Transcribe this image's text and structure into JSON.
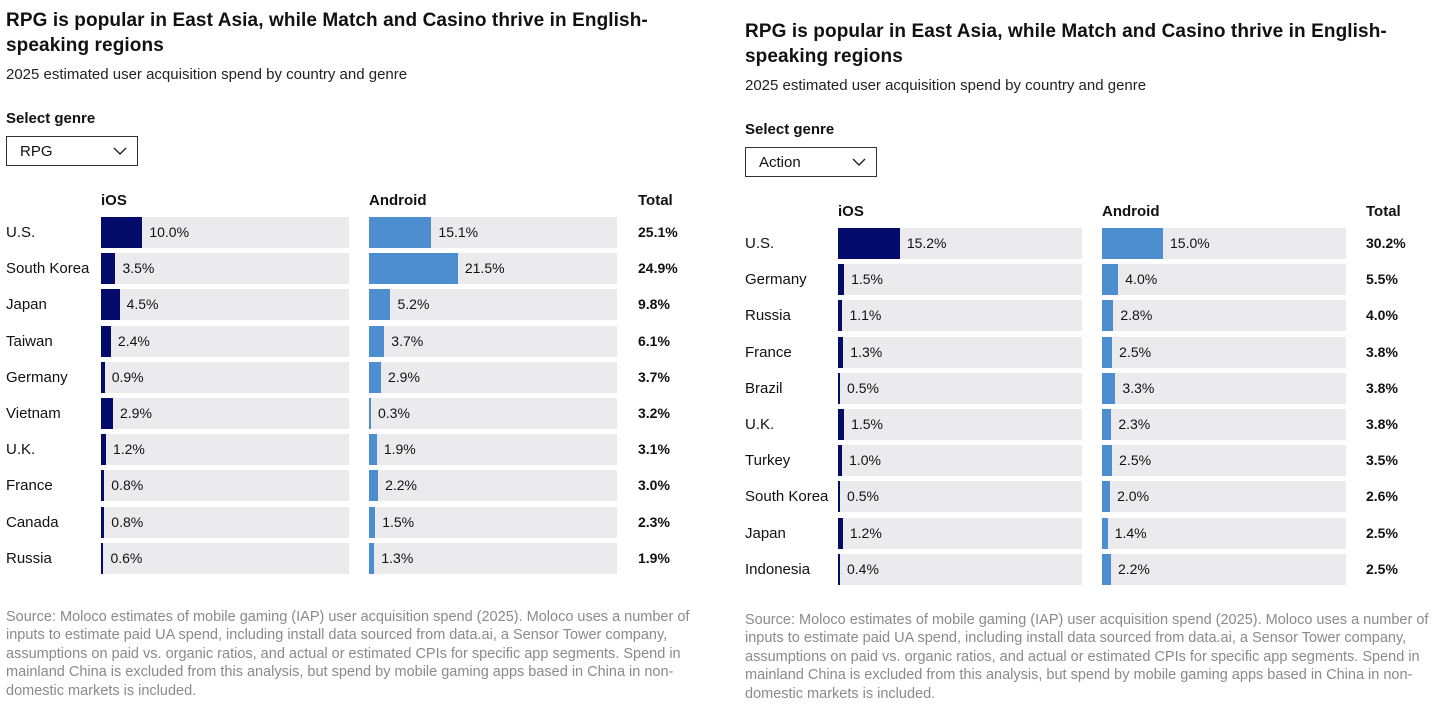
{
  "panels": [
    {
      "title": "RPG is popular in East Asia, while Match and Casino thrive in English-speaking regions",
      "subtitle": "2025 estimated user acquisition spend by country and genre",
      "select_label": "Select genre",
      "select_value": "RPG",
      "headers": {
        "ios": "iOS",
        "android": "Android",
        "total": "Total"
      },
      "source": "Source: Moloco estimates of mobile gaming (IAP) user acquisition spend (2025). Moloco uses a number of inputs to estimate paid UA spend, including install data sourced from data.ai, a Sensor Tower company, assumptions on paid vs. organic ratios, and actual or estimated CPIs for specific app segments. Spend in mainland China is excluded from this analysis, but spend by mobile gaming apps based in China in non-domestic markets is included."
    },
    {
      "title": "RPG is popular in East Asia, while Match and Casino thrive in English-speaking regions",
      "subtitle": "2025 estimated user acquisition spend by country and genre",
      "select_label": "Select genre",
      "select_value": "Action",
      "headers": {
        "ios": "iOS",
        "android": "Android",
        "total": "Total"
      },
      "source": "Source: Moloco estimates of mobile gaming (IAP) user acquisition spend (2025). Moloco uses a number of inputs to estimate paid UA spend, including install data sourced from data.ai, a Sensor Tower company, assumptions on paid vs. organic ratios, and actual or estimated CPIs for specific app segments. Spend in mainland China is excluded from this analysis, but spend by mobile gaming apps based in China in non-domestic markets is included."
    }
  ],
  "chart_data": [
    {
      "type": "bar",
      "genre": "RPG",
      "title": "RPG is popular in East Asia, while Match and Casino thrive in English-speaking regions",
      "subtitle": "2025 estimated user acquisition spend by country and genre",
      "categories": [
        "U.S.",
        "South Korea",
        "Japan",
        "Taiwan",
        "Germany",
        "Vietnam",
        "U.K.",
        "France",
        "Canada",
        "Russia"
      ],
      "series": [
        {
          "name": "iOS",
          "values": [
            10.0,
            3.5,
            4.5,
            2.4,
            0.9,
            2.9,
            1.2,
            0.8,
            0.8,
            0.6
          ],
          "color": "#040c6b"
        },
        {
          "name": "Android",
          "values": [
            15.1,
            21.5,
            5.2,
            3.7,
            2.9,
            0.3,
            1.9,
            2.2,
            1.5,
            1.3
          ],
          "color": "#4d8ed0"
        }
      ],
      "labels_ios": [
        "10.0%",
        "3.5%",
        "4.5%",
        "2.4%",
        "0.9%",
        "2.9%",
        "1.2%",
        "0.8%",
        "0.8%",
        "0.6%"
      ],
      "labels_android": [
        "15.1%",
        "21.5%",
        "5.2%",
        "3.7%",
        "2.9%",
        "0.3%",
        "1.9%",
        "2.2%",
        "1.5%",
        "1.3%"
      ],
      "totals": [
        "25.1%",
        "24.9%",
        "9.8%",
        "6.1%",
        "3.7%",
        "3.2%",
        "3.1%",
        "3.0%",
        "2.3%",
        "1.9%"
      ],
      "xlim": [
        0,
        60
      ]
    },
    {
      "type": "bar",
      "genre": "Action",
      "title": "RPG is popular in East Asia, while Match and Casino thrive in English-speaking regions",
      "subtitle": "2025 estimated user acquisition spend by country and genre",
      "categories": [
        "U.S.",
        "Germany",
        "Russia",
        "France",
        "Brazil",
        "U.K.",
        "Turkey",
        "South Korea",
        "Japan",
        "Indonesia"
      ],
      "series": [
        {
          "name": "iOS",
          "values": [
            15.2,
            1.5,
            1.1,
            1.3,
            0.5,
            1.5,
            1.0,
            0.5,
            1.2,
            0.4
          ],
          "color": "#040c6b"
        },
        {
          "name": "Android",
          "values": [
            15.0,
            4.0,
            2.8,
            2.5,
            3.3,
            2.3,
            2.5,
            2.0,
            1.4,
            2.2
          ],
          "color": "#4d8ed0"
        }
      ],
      "labels_ios": [
        "15.2%",
        "1.5%",
        "1.1%",
        "1.3%",
        "0.5%",
        "1.5%",
        "1.0%",
        "0.5%",
        "1.2%",
        "0.4%"
      ],
      "labels_android": [
        "15.0%",
        "4.0%",
        "2.8%",
        "2.5%",
        "3.3%",
        "2.3%",
        "2.5%",
        "2.0%",
        "1.4%",
        "2.2%"
      ],
      "totals": [
        "30.2%",
        "5.5%",
        "4.0%",
        "3.8%",
        "3.8%",
        "3.8%",
        "3.5%",
        "2.6%",
        "2.5%",
        "2.5%"
      ],
      "xlim": [
        0,
        60
      ]
    }
  ]
}
